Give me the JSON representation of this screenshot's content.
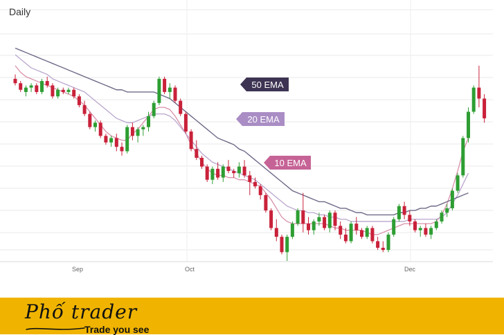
{
  "chart_data": {
    "type": "candlestick",
    "title": "Daily",
    "x_tick_labels": [
      "Sep",
      "Oct",
      "Dec"
    ],
    "grid": true,
    "ylim": [
      0,
      100
    ],
    "colors": {
      "up": "#2e9e33",
      "down": "#c9213a",
      "ema10": "#d890aa",
      "ema20": "#b9a6cd",
      "ema50": "#6e6a88",
      "label_ema10": "#c66396",
      "label_ema20": "#a98dc4",
      "label_ema50": "#3d3453"
    },
    "candles": [
      {
        "o": 83,
        "h": 85,
        "l": 80,
        "c": 81
      },
      {
        "o": 81,
        "h": 82,
        "l": 77,
        "c": 78
      },
      {
        "o": 77,
        "h": 80,
        "l": 75,
        "c": 79
      },
      {
        "o": 79,
        "h": 81,
        "l": 77,
        "c": 80
      },
      {
        "o": 80,
        "h": 81,
        "l": 76,
        "c": 77
      },
      {
        "o": 77,
        "h": 83,
        "l": 76,
        "c": 82
      },
      {
        "o": 82,
        "h": 84,
        "l": 79,
        "c": 80
      },
      {
        "o": 80,
        "h": 81,
        "l": 74,
        "c": 75
      },
      {
        "o": 75,
        "h": 79,
        "l": 74,
        "c": 78
      },
      {
        "o": 78,
        "h": 79,
        "l": 76,
        "c": 77
      },
      {
        "o": 77,
        "h": 79,
        "l": 76,
        "c": 78
      },
      {
        "o": 78,
        "h": 79,
        "l": 74,
        "c": 75
      },
      {
        "o": 75,
        "h": 76,
        "l": 70,
        "c": 71
      },
      {
        "o": 71,
        "h": 73,
        "l": 66,
        "c": 67
      },
      {
        "o": 67,
        "h": 68,
        "l": 60,
        "c": 61
      },
      {
        "o": 61,
        "h": 64,
        "l": 59,
        "c": 63
      },
      {
        "o": 63,
        "h": 64,
        "l": 56,
        "c": 57
      },
      {
        "o": 57,
        "h": 58,
        "l": 53,
        "c": 54
      },
      {
        "o": 54,
        "h": 57,
        "l": 52,
        "c": 56
      },
      {
        "o": 56,
        "h": 58,
        "l": 50,
        "c": 52
      },
      {
        "o": 52,
        "h": 54,
        "l": 48,
        "c": 50
      },
      {
        "o": 50,
        "h": 62,
        "l": 49,
        "c": 61
      },
      {
        "o": 61,
        "h": 63,
        "l": 55,
        "c": 57
      },
      {
        "o": 57,
        "h": 61,
        "l": 54,
        "c": 60
      },
      {
        "o": 60,
        "h": 62,
        "l": 57,
        "c": 61
      },
      {
        "o": 61,
        "h": 68,
        "l": 59,
        "c": 66
      },
      {
        "o": 66,
        "h": 73,
        "l": 65,
        "c": 72
      },
      {
        "o": 72,
        "h": 84,
        "l": 71,
        "c": 83
      },
      {
        "o": 83,
        "h": 84,
        "l": 76,
        "c": 77
      },
      {
        "o": 77,
        "h": 81,
        "l": 74,
        "c": 79
      },
      {
        "o": 79,
        "h": 80,
        "l": 72,
        "c": 73
      },
      {
        "o": 73,
        "h": 74,
        "l": 66,
        "c": 67
      },
      {
        "o": 67,
        "h": 68,
        "l": 58,
        "c": 59
      },
      {
        "o": 59,
        "h": 60,
        "l": 50,
        "c": 51
      },
      {
        "o": 51,
        "h": 55,
        "l": 46,
        "c": 47
      },
      {
        "o": 47,
        "h": 48,
        "l": 42,
        "c": 43
      },
      {
        "o": 43,
        "h": 44,
        "l": 36,
        "c": 37
      },
      {
        "o": 37,
        "h": 43,
        "l": 35,
        "c": 42
      },
      {
        "o": 42,
        "h": 45,
        "l": 37,
        "c": 38
      },
      {
        "o": 38,
        "h": 44,
        "l": 36,
        "c": 43
      },
      {
        "o": 43,
        "h": 46,
        "l": 40,
        "c": 41
      },
      {
        "o": 41,
        "h": 42,
        "l": 38,
        "c": 40
      },
      {
        "o": 40,
        "h": 45,
        "l": 38,
        "c": 43
      },
      {
        "o": 43,
        "h": 46,
        "l": 38,
        "c": 39
      },
      {
        "o": 39,
        "h": 41,
        "l": 30,
        "c": 36
      },
      {
        "o": 36,
        "h": 38,
        "l": 33,
        "c": 34
      },
      {
        "o": 34,
        "h": 35,
        "l": 28,
        "c": 30
      },
      {
        "o": 30,
        "h": 31,
        "l": 22,
        "c": 23
      },
      {
        "o": 23,
        "h": 24,
        "l": 14,
        "c": 15
      },
      {
        "o": 15,
        "h": 19,
        "l": 9,
        "c": 11
      },
      {
        "o": 11,
        "h": 12,
        "l": 3,
        "c": 4
      },
      {
        "o": 4,
        "h": 12,
        "l": 0,
        "c": 11
      },
      {
        "o": 11,
        "h": 18,
        "l": 10,
        "c": 17
      },
      {
        "o": 17,
        "h": 24,
        "l": 16,
        "c": 23
      },
      {
        "o": 23,
        "h": 31,
        "l": 13,
        "c": 17
      },
      {
        "o": 17,
        "h": 20,
        "l": 12,
        "c": 14
      },
      {
        "o": 14,
        "h": 19,
        "l": 12,
        "c": 18
      },
      {
        "o": 18,
        "h": 22,
        "l": 16,
        "c": 20
      },
      {
        "o": 20,
        "h": 21,
        "l": 14,
        "c": 15
      },
      {
        "o": 15,
        "h": 23,
        "l": 13,
        "c": 22
      },
      {
        "o": 22,
        "h": 23,
        "l": 14,
        "c": 16
      },
      {
        "o": 16,
        "h": 18,
        "l": 10,
        "c": 12
      },
      {
        "o": 12,
        "h": 15,
        "l": 8,
        "c": 9
      },
      {
        "o": 9,
        "h": 18,
        "l": 8,
        "c": 17
      },
      {
        "o": 17,
        "h": 20,
        "l": 12,
        "c": 14
      },
      {
        "o": 14,
        "h": 15,
        "l": 10,
        "c": 11
      },
      {
        "o": 11,
        "h": 16,
        "l": 10,
        "c": 15
      },
      {
        "o": 15,
        "h": 16,
        "l": 8,
        "c": 9
      },
      {
        "o": 9,
        "h": 11,
        "l": 5,
        "c": 6
      },
      {
        "o": 6,
        "h": 9,
        "l": 4,
        "c": 5
      },
      {
        "o": 5,
        "h": 13,
        "l": 4,
        "c": 12
      },
      {
        "o": 12,
        "h": 20,
        "l": 11,
        "c": 19
      },
      {
        "o": 19,
        "h": 26,
        "l": 18,
        "c": 25
      },
      {
        "o": 25,
        "h": 27,
        "l": 19,
        "c": 21
      },
      {
        "o": 21,
        "h": 23,
        "l": 16,
        "c": 18
      },
      {
        "o": 18,
        "h": 19,
        "l": 13,
        "c": 14
      },
      {
        "o": 14,
        "h": 16,
        "l": 11,
        "c": 15
      },
      {
        "o": 15,
        "h": 17,
        "l": 11,
        "c": 12
      },
      {
        "o": 12,
        "h": 16,
        "l": 10,
        "c": 15
      },
      {
        "o": 15,
        "h": 19,
        "l": 14,
        "c": 18
      },
      {
        "o": 18,
        "h": 23,
        "l": 17,
        "c": 22
      },
      {
        "o": 22,
        "h": 26,
        "l": 20,
        "c": 24
      },
      {
        "o": 24,
        "h": 33,
        "l": 23,
        "c": 32
      },
      {
        "o": 32,
        "h": 40,
        "l": 31,
        "c": 39
      },
      {
        "o": 39,
        "h": 57,
        "l": 38,
        "c": 56
      },
      {
        "o": 56,
        "h": 70,
        "l": 54,
        "c": 68
      },
      {
        "o": 68,
        "h": 80,
        "l": 67,
        "c": 79
      },
      {
        "o": 79,
        "h": 89,
        "l": 70,
        "c": 74
      },
      {
        "o": 74,
        "h": 76,
        "l": 63,
        "c": 65
      }
    ],
    "series": [
      {
        "name": "10 EMA",
        "values": [
          89,
          86,
          84,
          83,
          82,
          81,
          80,
          79,
          78,
          77,
          76,
          75,
          73,
          71,
          68,
          65,
          62,
          59,
          57,
          56,
          55,
          55,
          58,
          60,
          63,
          66,
          69,
          70,
          70,
          69,
          66,
          62,
          58,
          53,
          49,
          45,
          42,
          40,
          39,
          39,
          38,
          38,
          37,
          37,
          36,
          35,
          34,
          31,
          28,
          24,
          20,
          18,
          17,
          17,
          17,
          17,
          17,
          17,
          17,
          16,
          15,
          15,
          14,
          14,
          14,
          14,
          13,
          12,
          12,
          13,
          14,
          15,
          16,
          17,
          17,
          17,
          17,
          17,
          17,
          18,
          21,
          26,
          33,
          41,
          50,
          56
        ]
      },
      {
        "name": "20 EMA",
        "values": [
          94,
          92,
          90,
          88,
          87,
          86,
          85,
          83,
          82,
          81,
          80,
          79,
          78,
          77,
          75,
          73,
          71,
          69,
          67,
          65,
          64,
          63,
          63,
          64,
          65,
          66,
          67,
          67,
          67,
          66,
          64,
          61,
          58,
          55,
          52,
          49,
          47,
          45,
          44,
          43,
          42,
          41,
          40,
          39,
          38,
          37,
          35,
          33,
          31,
          29,
          27,
          25,
          24,
          23,
          23,
          22,
          22,
          21,
          21,
          20,
          20,
          19,
          19,
          18,
          18,
          18,
          18,
          18,
          18,
          18,
          18,
          18,
          18,
          18,
          19,
          19,
          19,
          19,
          19,
          19,
          20,
          22,
          26,
          30,
          35,
          40
        ]
      },
      {
        "name": "50 EMA",
        "values": [
          97,
          96,
          95,
          94,
          93,
          92,
          91,
          90,
          89,
          88,
          87,
          86,
          85,
          84,
          83,
          82,
          81,
          80,
          79,
          78,
          78,
          77,
          77,
          77,
          77,
          77,
          77,
          76,
          75,
          74,
          72,
          70,
          68,
          66,
          64,
          62,
          60,
          58,
          56,
          55,
          54,
          53,
          51,
          50,
          48,
          46,
          44,
          42,
          40,
          38,
          36,
          34,
          32,
          31,
          30,
          29,
          28,
          27,
          27,
          26,
          25,
          24,
          24,
          23,
          22,
          22,
          21,
          21,
          21,
          21,
          21,
          21,
          22,
          22,
          23,
          23,
          24,
          24,
          25,
          25,
          26,
          27,
          28,
          29,
          30,
          31
        ]
      }
    ]
  },
  "banner": {
    "brand": "Phố trader",
    "tagline": "Trade you see"
  }
}
